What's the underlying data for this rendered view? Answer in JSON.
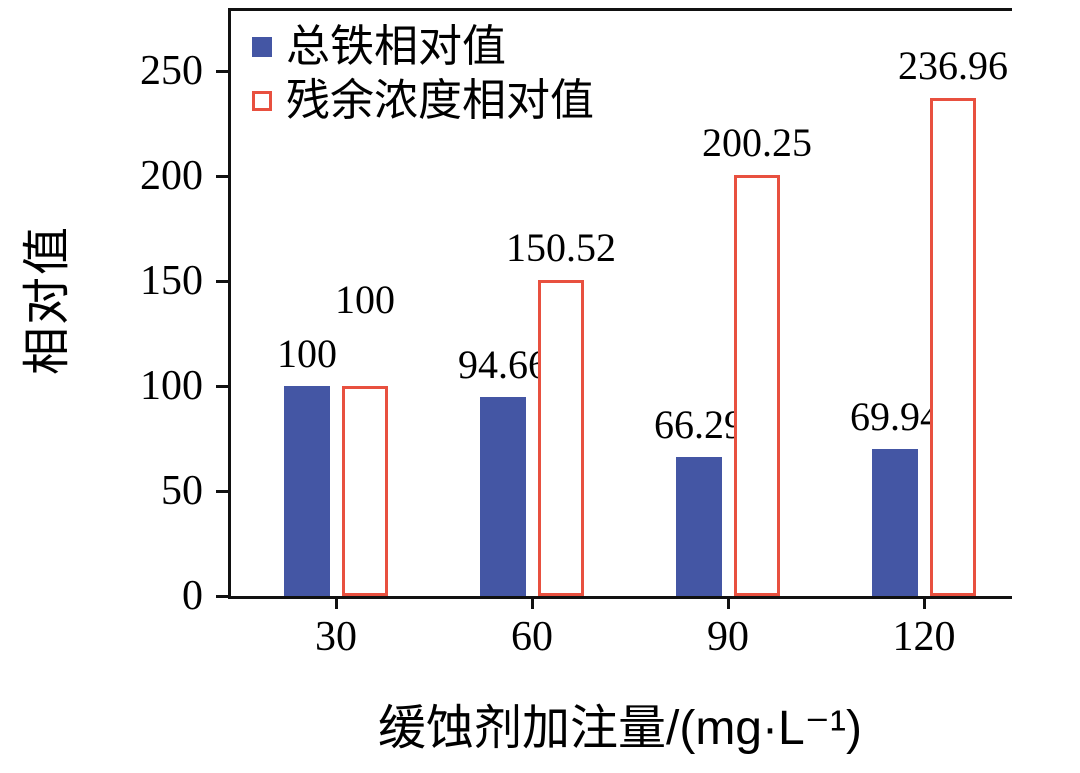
{
  "chart_data": {
    "type": "bar",
    "categories": [
      "30",
      "60",
      "90",
      "120"
    ],
    "series": [
      {
        "name": "总铁相对值",
        "fill": "solid",
        "color": "#4456a4",
        "values": [
          100,
          94.66,
          66.29,
          69.94
        ],
        "labels": [
          "100",
          "94.66",
          "66.29",
          "69.94"
        ]
      },
      {
        "name": "残余浓度相对值",
        "fill": "outline",
        "color": "#e8503f",
        "values": [
          100,
          150.52,
          200.25,
          236.96
        ],
        "labels": [
          "100",
          "150.52",
          "200.25",
          "236.96"
        ]
      }
    ],
    "title": "",
    "xlabel": "缓蚀剂加注量/(mg·L⁻¹)",
    "ylabel": "相对值",
    "yticks": [
      0,
      50,
      100,
      150,
      200,
      250
    ],
    "ylim": [
      0,
      280
    ],
    "grid": false,
    "legend_position": "top-left",
    "axis_color": "#111111",
    "label_color": "#000000"
  }
}
